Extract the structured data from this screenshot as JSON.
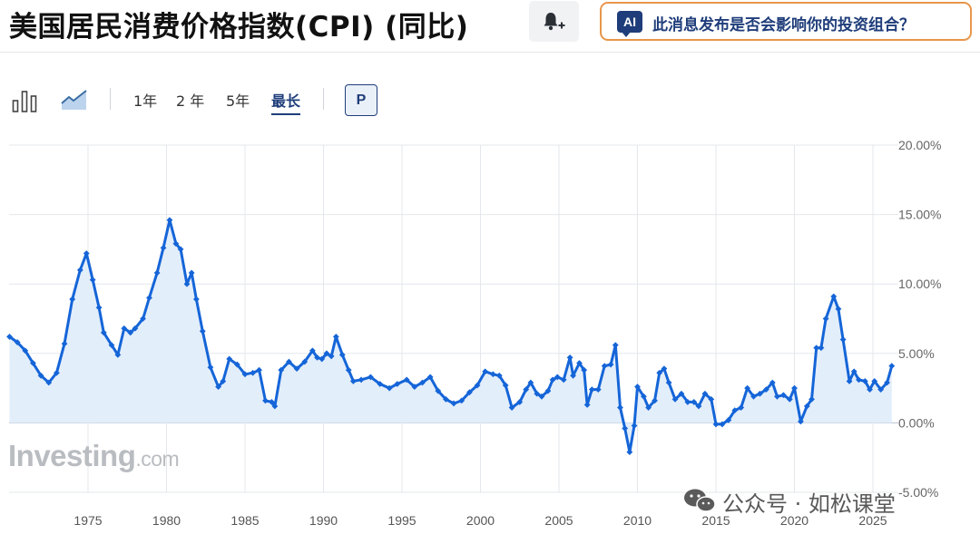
{
  "header": {
    "title": "美国居民消费价格指数(CPI) (同比)",
    "ai_badge": "AI",
    "ai_prompt": "此消息发布是否会影响你的投资组合？"
  },
  "toolbar": {
    "ranges": [
      "1年",
      "2 年",
      "5年",
      "最长"
    ],
    "active_range": "最长",
    "p_label": "P",
    "icons": [
      "bar-chart-icon",
      "area-chart-icon",
      "bell-plus-icon"
    ]
  },
  "watermark": {
    "logo_main": "Investing",
    "logo_suffix": ".com",
    "credit": "公众号 · 如松课堂"
  },
  "colors": {
    "line": "#1565d8",
    "fill": "#e3eefb",
    "accent": "#1f3d7a",
    "ai_border": "#e8964a"
  },
  "chart_data": {
    "type": "area",
    "title": "美国居民消费价格指数(CPI) (同比)",
    "xlabel": "",
    "ylabel": "",
    "y_unit": "%",
    "ylim": [
      -5,
      20
    ],
    "xlim": [
      1970.0,
      2026.5
    ],
    "yticks": [
      "20.00%",
      "15.00%",
      "10.00%",
      "5.00%",
      "0.00%",
      "-5.00%"
    ],
    "ytick_values": [
      20,
      15,
      10,
      5,
      0,
      -5
    ],
    "xticks": [
      "1975",
      "1980",
      "1985",
      "1990",
      "1995",
      "2000",
      "2005",
      "2010",
      "2015",
      "2020",
      "2025"
    ],
    "xtick_values": [
      1975,
      1980,
      1985,
      1990,
      1995,
      2000,
      2005,
      2010,
      2015,
      2020,
      2025
    ],
    "grid": true,
    "legend": "none",
    "series": [
      {
        "points": [
          [
            1970.0,
            6.2
          ],
          [
            1970.5,
            5.8
          ],
          [
            1971.0,
            5.2
          ],
          [
            1971.5,
            4.3
          ],
          [
            1972.0,
            3.4
          ],
          [
            1972.5,
            2.9
          ],
          [
            1973.0,
            3.6
          ],
          [
            1973.5,
            5.7
          ],
          [
            1974.0,
            8.9
          ],
          [
            1974.5,
            11.0
          ],
          [
            1974.9,
            12.2
          ],
          [
            1975.3,
            10.3
          ],
          [
            1975.7,
            8.3
          ],
          [
            1976.0,
            6.5
          ],
          [
            1976.5,
            5.6
          ],
          [
            1976.9,
            4.9
          ],
          [
            1977.3,
            6.8
          ],
          [
            1977.7,
            6.5
          ],
          [
            1978.0,
            6.8
          ],
          [
            1978.5,
            7.5
          ],
          [
            1978.9,
            9.0
          ],
          [
            1979.4,
            10.8
          ],
          [
            1979.8,
            12.6
          ],
          [
            1980.2,
            14.6
          ],
          [
            1980.6,
            12.9
          ],
          [
            1980.9,
            12.5
          ],
          [
            1981.3,
            10.0
          ],
          [
            1981.6,
            10.8
          ],
          [
            1981.9,
            8.9
          ],
          [
            1982.3,
            6.6
          ],
          [
            1982.8,
            4.0
          ],
          [
            1983.3,
            2.6
          ],
          [
            1983.6,
            3.0
          ],
          [
            1984.0,
            4.6
          ],
          [
            1984.5,
            4.2
          ],
          [
            1985.0,
            3.5
          ],
          [
            1985.5,
            3.6
          ],
          [
            1985.9,
            3.8
          ],
          [
            1986.3,
            1.6
          ],
          [
            1986.7,
            1.5
          ],
          [
            1986.9,
            1.2
          ],
          [
            1987.3,
            3.8
          ],
          [
            1987.8,
            4.4
          ],
          [
            1988.3,
            3.9
          ],
          [
            1988.8,
            4.4
          ],
          [
            1989.3,
            5.2
          ],
          [
            1989.6,
            4.7
          ],
          [
            1989.9,
            4.6
          ],
          [
            1990.2,
            5.0
          ],
          [
            1990.5,
            4.8
          ],
          [
            1990.8,
            6.2
          ],
          [
            1991.2,
            4.9
          ],
          [
            1991.6,
            3.8
          ],
          [
            1991.9,
            3.0
          ],
          [
            1992.4,
            3.1
          ],
          [
            1993.0,
            3.3
          ],
          [
            1993.6,
            2.8
          ],
          [
            1994.2,
            2.5
          ],
          [
            1994.7,
            2.8
          ],
          [
            1995.3,
            3.1
          ],
          [
            1995.8,
            2.6
          ],
          [
            1996.3,
            2.9
          ],
          [
            1996.8,
            3.3
          ],
          [
            1997.3,
            2.3
          ],
          [
            1997.8,
            1.7
          ],
          [
            1998.3,
            1.4
          ],
          [
            1998.8,
            1.6
          ],
          [
            1999.3,
            2.2
          ],
          [
            1999.8,
            2.7
          ],
          [
            2000.3,
            3.7
          ],
          [
            2000.8,
            3.5
          ],
          [
            2001.2,
            3.4
          ],
          [
            2001.6,
            2.7
          ],
          [
            2002.0,
            1.1
          ],
          [
            2002.5,
            1.5
          ],
          [
            2002.9,
            2.4
          ],
          [
            2003.2,
            2.9
          ],
          [
            2003.6,
            2.1
          ],
          [
            2003.9,
            1.9
          ],
          [
            2004.3,
            2.3
          ],
          [
            2004.6,
            3.1
          ],
          [
            2004.9,
            3.3
          ],
          [
            2005.3,
            3.1
          ],
          [
            2005.7,
            4.7
          ],
          [
            2005.9,
            3.4
          ],
          [
            2006.3,
            4.3
          ],
          [
            2006.6,
            3.8
          ],
          [
            2006.8,
            1.3
          ],
          [
            2007.1,
            2.4
          ],
          [
            2007.5,
            2.4
          ],
          [
            2007.9,
            4.1
          ],
          [
            2008.3,
            4.2
          ],
          [
            2008.6,
            5.6
          ],
          [
            2008.9,
            1.1
          ],
          [
            2009.2,
            -0.4
          ],
          [
            2009.5,
            -2.1
          ],
          [
            2009.8,
            -0.2
          ],
          [
            2010.0,
            2.6
          ],
          [
            2010.4,
            1.9
          ],
          [
            2010.7,
            1.1
          ],
          [
            2011.1,
            1.6
          ],
          [
            2011.4,
            3.6
          ],
          [
            2011.7,
            3.9
          ],
          [
            2012.0,
            2.9
          ],
          [
            2012.4,
            1.7
          ],
          [
            2012.8,
            2.1
          ],
          [
            2013.2,
            1.5
          ],
          [
            2013.6,
            1.5
          ],
          [
            2013.9,
            1.2
          ],
          [
            2014.3,
            2.1
          ],
          [
            2014.7,
            1.7
          ],
          [
            2015.0,
            -0.1
          ],
          [
            2015.4,
            -0.1
          ],
          [
            2015.8,
            0.2
          ],
          [
            2016.2,
            0.9
          ],
          [
            2016.6,
            1.1
          ],
          [
            2017.0,
            2.5
          ],
          [
            2017.4,
            1.9
          ],
          [
            2017.8,
            2.1
          ],
          [
            2018.2,
            2.4
          ],
          [
            2018.6,
            2.9
          ],
          [
            2018.9,
            1.9
          ],
          [
            2019.3,
            2.0
          ],
          [
            2019.7,
            1.7
          ],
          [
            2020.0,
            2.5
          ],
          [
            2020.4,
            0.1
          ],
          [
            2020.8,
            1.2
          ],
          [
            2021.1,
            1.7
          ],
          [
            2021.4,
            5.4
          ],
          [
            2021.7,
            5.4
          ],
          [
            2022.0,
            7.5
          ],
          [
            2022.5,
            9.1
          ],
          [
            2022.8,
            8.2
          ],
          [
            2023.1,
            6.0
          ],
          [
            2023.5,
            3.0
          ],
          [
            2023.8,
            3.7
          ],
          [
            2024.1,
            3.1
          ],
          [
            2024.5,
            3.0
          ],
          [
            2024.8,
            2.4
          ],
          [
            2025.1,
            3.0
          ],
          [
            2025.5,
            2.4
          ],
          [
            2025.9,
            2.9
          ],
          [
            2026.2,
            4.1
          ]
        ]
      }
    ]
  }
}
